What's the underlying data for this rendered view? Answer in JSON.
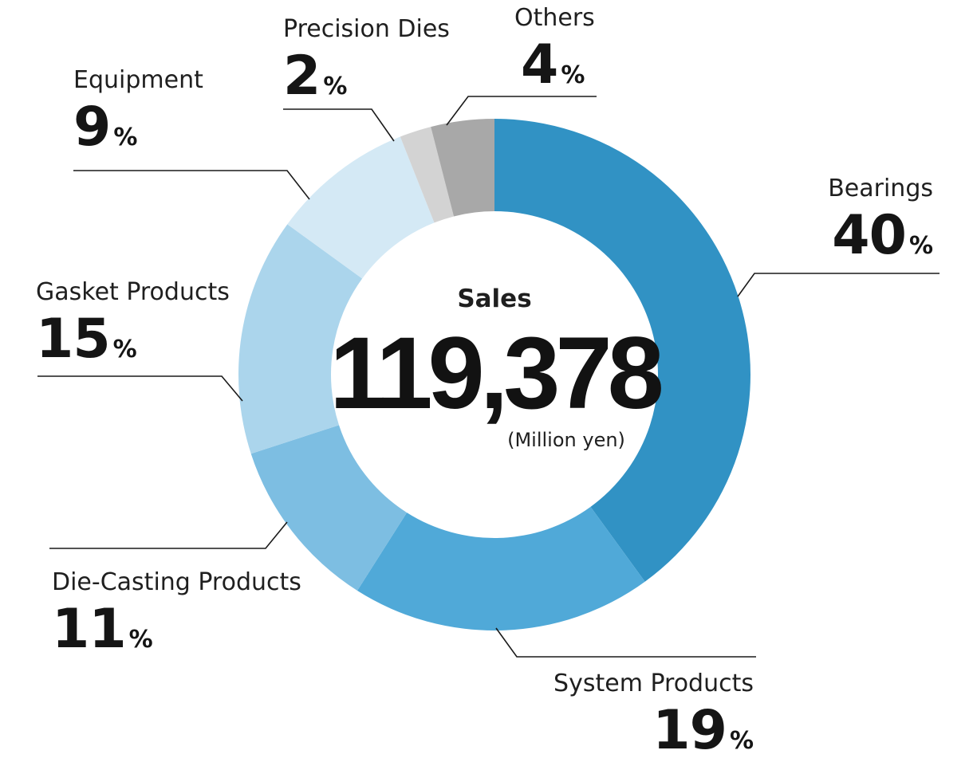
{
  "chart_data": {
    "type": "pie",
    "center": {
      "title": "Sales",
      "value": "119,378",
      "unit": "(Million yen)"
    },
    "slices": [
      {
        "name": "Bearings",
        "value": 40,
        "color": "#3192c4"
      },
      {
        "name": "System Products",
        "value": 19,
        "color": "#50a9d8"
      },
      {
        "name": "Die-Casting Products",
        "value": 11,
        "color": "#7dbee2"
      },
      {
        "name": "Gasket Products",
        "value": 15,
        "color": "#abd5ec"
      },
      {
        "name": "Equipment",
        "value": 9,
        "color": "#d4e9f5"
      },
      {
        "name": "Precision Dies",
        "value": 2,
        "color": "#d3d3d3"
      },
      {
        "name": "Others",
        "value": 4,
        "color": "#a8a8a8"
      }
    ],
    "percent_unit": "%"
  }
}
